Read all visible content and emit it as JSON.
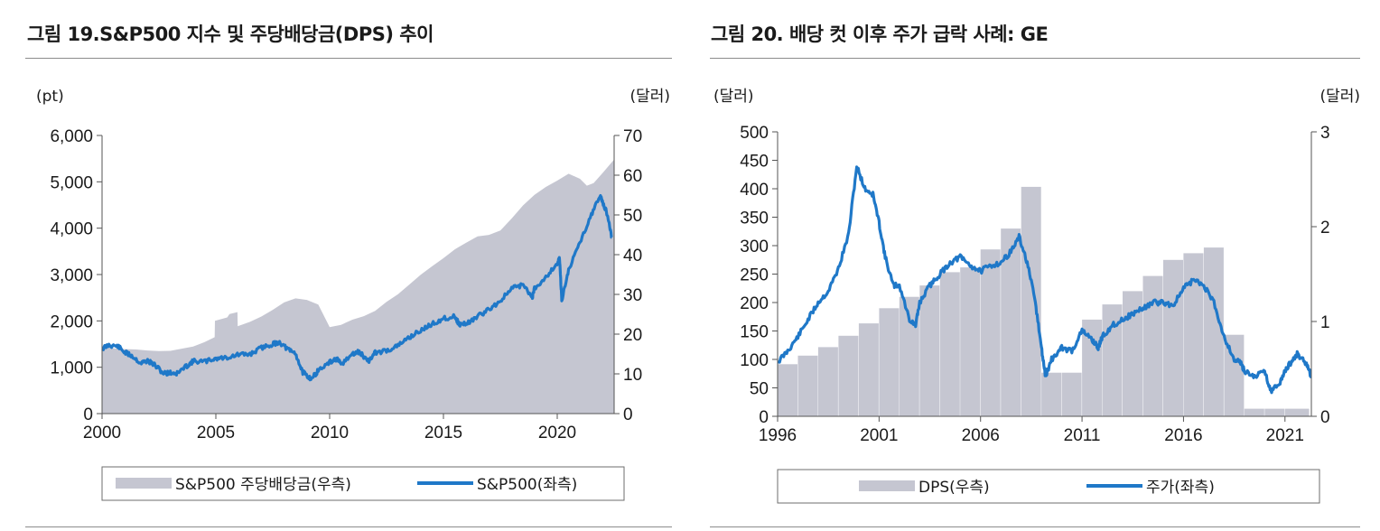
{
  "colors": {
    "area": "#c5c6d1",
    "line": "#1f78c8",
    "axis": "#555555"
  },
  "left": {
    "title": "그림 19.S&P500 지수 및 주당배당금(DPS) 추이",
    "chart_data": {
      "type": "area+line",
      "title": "그림 19.S&P500 지수 및 주당배당금(DPS) 추이",
      "left_unit": "(pt)",
      "right_unit": "(달러)",
      "x_range": [
        2000,
        2022.5
      ],
      "x_ticks": [
        "2000",
        "2005",
        "2010",
        "2015",
        "2020"
      ],
      "y_left_range": [
        0,
        6000
      ],
      "y_left_ticks": [
        "0",
        "1,000",
        "2,000",
        "3,000",
        "4,000",
        "5,000",
        "6,000"
      ],
      "y_right_range": [
        0,
        70
      ],
      "y_right_ticks": [
        "0",
        "10",
        "20",
        "30",
        "40",
        "50",
        "60",
        "70"
      ],
      "series": [
        {
          "name": "S&P500 주당배당금(우측)",
          "type": "area",
          "axis": "right",
          "x": [
            2000.0,
            2000.8,
            2001.5,
            2002.0,
            2002.5,
            2003.0,
            2003.5,
            2004.0,
            2004.5,
            2004.95,
            2004.96,
            2005.5,
            2005.6,
            2005.95,
            2005.96,
            2006.5,
            2007.0,
            2007.5,
            2008.0,
            2008.5,
            2009.0,
            2009.5,
            2010.0,
            2010.5,
            2011.0,
            2011.5,
            2012.0,
            2012.5,
            2013.0,
            2013.5,
            2014.0,
            2014.5,
            2015.0,
            2015.5,
            2016.0,
            2016.5,
            2017.0,
            2017.5,
            2018.0,
            2018.5,
            2019.0,
            2019.5,
            2020.0,
            2020.5,
            2021.0,
            2021.3,
            2021.6,
            2022.0,
            2022.5
          ],
          "values": [
            16.7,
            16.3,
            16.0,
            15.8,
            15.7,
            15.8,
            16.2,
            17.0,
            18.0,
            19.2,
            23.3,
            24.3,
            25.1,
            25.4,
            22.0,
            23.0,
            24.5,
            26.0,
            28.0,
            29.0,
            28.5,
            27.3,
            21.9,
            22.5,
            23.5,
            24.5,
            26.0,
            28.0,
            30.0,
            32.5,
            35.0,
            37.0,
            39.0,
            41.5,
            43.0,
            44.5,
            45.0,
            46.0,
            49.0,
            52.5,
            55.0,
            57.0,
            58.5,
            60.5,
            59.0,
            57.5,
            58.0,
            60.5,
            64.0
          ]
        },
        {
          "name": "S&P500(좌측)",
          "type": "line",
          "axis": "left",
          "x": [
            2000.0,
            2000.3,
            2000.7,
            2001.0,
            2001.3,
            2001.7,
            2002.0,
            2002.3,
            2002.7,
            2003.0,
            2003.3,
            2003.7,
            2004.0,
            2004.5,
            2005.0,
            2005.5,
            2006.0,
            2006.5,
            2007.0,
            2007.5,
            2007.8,
            2008.2,
            2008.5,
            2008.8,
            2009.0,
            2009.2,
            2009.5,
            2010.0,
            2010.3,
            2010.5,
            2011.0,
            2011.3,
            2011.7,
            2012.0,
            2012.5,
            2013.0,
            2013.5,
            2014.0,
            2014.5,
            2015.0,
            2015.5,
            2015.7,
            2016.0,
            2016.5,
            2017.0,
            2017.5,
            2018.0,
            2018.5,
            2018.9,
            2019.0,
            2019.5,
            2020.0,
            2020.1,
            2020.2,
            2020.5,
            2021.0,
            2021.5,
            2021.9,
            2022.0,
            2022.2,
            2022.4
          ],
          "values": [
            1400,
            1480,
            1450,
            1320,
            1250,
            1090,
            1140,
            1050,
            870,
            880,
            870,
            1020,
            1130,
            1120,
            1190,
            1210,
            1270,
            1280,
            1420,
            1500,
            1540,
            1370,
            1300,
            900,
            820,
            750,
            930,
            1100,
            1180,
            1060,
            1280,
            1330,
            1130,
            1310,
            1360,
            1460,
            1650,
            1790,
            1930,
            2050,
            2100,
            1920,
            1940,
            2090,
            2250,
            2430,
            2700,
            2780,
            2500,
            2700,
            2950,
            3240,
            3350,
            2450,
            3100,
            3700,
            4300,
            4700,
            4550,
            4300,
            3800
          ]
        }
      ]
    },
    "legend": {
      "area_label": "S&P500 주당배당금(우측)",
      "line_label": "S&P500(좌측)"
    }
  },
  "right": {
    "title": "그림 20. 배당 컷 이후 주가 급락 사례: GE",
    "chart_data": {
      "type": "bar+line",
      "title": "그림 20. 배당 컷 이후 주가 급락 사례: GE",
      "left_unit": "(달러)",
      "right_unit": "(달러)",
      "x_range": [
        1996,
        2022.3
      ],
      "x_ticks": [
        "1996",
        "2001",
        "2006",
        "2011",
        "2016",
        "2021"
      ],
      "y_left_range": [
        0,
        500
      ],
      "y_left_ticks": [
        "0",
        "50",
        "100",
        "150",
        "200",
        "250",
        "300",
        "350",
        "400",
        "450",
        "500"
      ],
      "y_right_range": [
        0,
        3
      ],
      "y_right_ticks": [
        "0",
        "1",
        "2",
        "3"
      ],
      "series": [
        {
          "name": "DPS(우측)",
          "type": "bar",
          "axis": "right",
          "x": [
            1996,
            1997,
            1998,
            1999,
            2000,
            2001,
            2002,
            2003,
            2004,
            2005,
            2006,
            2007,
            2008,
            2009,
            2010,
            2011,
            2012,
            2013,
            2014,
            2015,
            2016,
            2017,
            2018,
            2019,
            2020,
            2021
          ],
          "values": [
            0.55,
            0.64,
            0.73,
            0.85,
            0.98,
            1.14,
            1.26,
            1.38,
            1.52,
            1.57,
            1.76,
            1.98,
            2.42,
            0.46,
            0.46,
            1.02,
            1.18,
            1.32,
            1.48,
            1.65,
            1.72,
            1.78,
            0.86,
            0.08,
            0.08,
            0.08
          ]
        },
        {
          "name": "주가(좌측)",
          "type": "line",
          "axis": "left",
          "x": [
            1996.0,
            1996.5,
            1997.0,
            1997.5,
            1998.0,
            1998.5,
            1999.0,
            1999.5,
            1999.9,
            2000.3,
            2000.7,
            2001.0,
            2001.3,
            2001.7,
            2002.0,
            2002.5,
            2002.8,
            2003.0,
            2003.5,
            2004.0,
            2004.5,
            2005.0,
            2005.5,
            2006.0,
            2006.5,
            2007.0,
            2007.5,
            2007.9,
            2008.3,
            2008.7,
            2009.0,
            2009.2,
            2009.5,
            2010.0,
            2010.5,
            2011.0,
            2011.5,
            2011.8,
            2012.0,
            2012.5,
            2013.0,
            2013.5,
            2014.0,
            2014.5,
            2015.0,
            2015.5,
            2016.0,
            2016.5,
            2017.0,
            2017.5,
            2018.0,
            2018.5,
            2018.8,
            2019.0,
            2019.5,
            2020.0,
            2020.3,
            2020.7,
            2021.0,
            2021.3,
            2021.6,
            2022.0,
            2022.3
          ],
          "values": [
            95,
            115,
            140,
            170,
            200,
            220,
            260,
            320,
            440,
            400,
            390,
            340,
            280,
            230,
            230,
            170,
            160,
            200,
            230,
            250,
            270,
            280,
            265,
            255,
            265,
            270,
            290,
            315,
            270,
            200,
            120,
            70,
            100,
            120,
            115,
            150,
            135,
            120,
            140,
            160,
            170,
            180,
            190,
            200,
            200,
            195,
            225,
            240,
            230,
            200,
            140,
            100,
            95,
            80,
            70,
            80,
            45,
            55,
            80,
            95,
            110,
            95,
            70
          ]
        }
      ]
    },
    "legend": {
      "bar_label": "DPS(우측)",
      "line_label": "주가(좌측)"
    }
  }
}
